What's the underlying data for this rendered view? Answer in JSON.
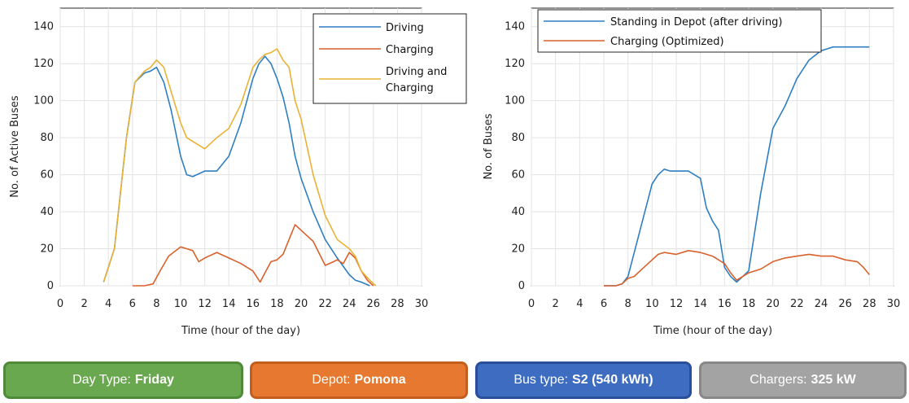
{
  "chart_data": [
    {
      "type": "line",
      "xlabel": "Time (hour of the day)",
      "ylabel": "No. of Active Buses",
      "xlim": [
        0,
        30
      ],
      "ylim": [
        0,
        150
      ],
      "xticks": [
        0,
        2,
        4,
        6,
        8,
        10,
        12,
        14,
        16,
        18,
        20,
        22,
        24,
        26,
        28,
        30
      ],
      "yticks": [
        0,
        20,
        40,
        60,
        80,
        100,
        120,
        140
      ],
      "grid": true,
      "legend_position": "top-right",
      "series": [
        {
          "name": "Driving",
          "color": "#2e7fc2",
          "x": [
            3.6,
            4.5,
            5.5,
            6.2,
            7,
            7.5,
            8,
            8.6,
            9.2,
            10,
            10.5,
            11,
            12,
            13,
            14,
            15,
            16,
            16.5,
            17,
            17.5,
            18,
            18.5,
            19,
            19.5,
            20,
            21,
            22,
            23,
            24,
            24.5,
            25,
            25.7
          ],
          "y": [
            2,
            20,
            80,
            110,
            115,
            116,
            118,
            110,
            95,
            70,
            60,
            59,
            62,
            62,
            70,
            88,
            112,
            120,
            124,
            120,
            112,
            102,
            88,
            70,
            58,
            40,
            25,
            15,
            6,
            3,
            2,
            0
          ]
        },
        {
          "name": "Charging",
          "color": "#d9612c",
          "x": [
            6,
            7,
            7.7,
            8.3,
            9,
            10,
            10.5,
            11,
            11.5,
            12,
            13,
            14,
            15,
            16,
            16.6,
            17,
            17.5,
            18,
            18.5,
            19,
            19.5,
            20,
            21,
            22,
            22.7,
            23,
            23.5,
            24,
            24.5,
            25,
            25.5,
            26
          ],
          "y": [
            0,
            0,
            1,
            8,
            16,
            21,
            20,
            19,
            13,
            15,
            18,
            15,
            12,
            8,
            2,
            7,
            13,
            14,
            17,
            25,
            33,
            30,
            24,
            11,
            13,
            14,
            12,
            18,
            15,
            8,
            3,
            0
          ]
        },
        {
          "name": "Driving and Charging",
          "color": "#eab234",
          "x": [
            3.6,
            4.5,
            5.5,
            6.2,
            7,
            7.5,
            8,
            8.6,
            9.2,
            10,
            10.5,
            11,
            12,
            13,
            14,
            15,
            16,
            16.5,
            17,
            17.5,
            18,
            18.5,
            19,
            19.5,
            20,
            21,
            22,
            23,
            24,
            24.5,
            25,
            25.7,
            26.2
          ],
          "y": [
            2,
            20,
            80,
            110,
            116,
            118,
            122,
            118,
            105,
            88,
            80,
            78,
            74,
            80,
            85,
            98,
            118,
            122,
            125,
            126,
            128,
            122,
            118,
            100,
            90,
            60,
            38,
            25,
            20,
            16,
            8,
            3,
            0
          ]
        }
      ]
    },
    {
      "type": "line",
      "xlabel": "Time (hour of the day)",
      "ylabel": "No. of Buses",
      "xlim": [
        0,
        30
      ],
      "ylim": [
        0,
        150
      ],
      "xticks": [
        0,
        2,
        4,
        6,
        8,
        10,
        12,
        14,
        16,
        18,
        20,
        22,
        24,
        26,
        28,
        30
      ],
      "yticks": [
        0,
        20,
        40,
        60,
        80,
        100,
        120,
        140
      ],
      "grid": true,
      "legend_position": "top-left",
      "series": [
        {
          "name": "Standing in Depot (after driving)",
          "color": "#2e7fc2",
          "x": [
            6,
            7,
            7.5,
            8,
            9,
            10,
            10.5,
            11,
            11.5,
            12,
            13,
            14,
            14.5,
            15,
            15.5,
            16,
            16.5,
            17,
            18,
            19,
            20,
            21,
            22,
            23,
            24,
            24.5,
            25,
            26,
            27,
            28
          ],
          "y": [
            0,
            0,
            1,
            5,
            30,
            55,
            60,
            63,
            62,
            62,
            62,
            58,
            42,
            35,
            30,
            10,
            5,
            2,
            8,
            50,
            85,
            97,
            112,
            122,
            127,
            128,
            129,
            129,
            129,
            129
          ]
        },
        {
          "name": "Charging (Optimized)",
          "color": "#d9612c",
          "x": [
            6,
            7,
            7.5,
            8,
            8.5,
            9,
            10,
            10.5,
            11,
            12,
            13,
            14,
            15,
            16,
            16.5,
            17,
            18,
            19,
            20,
            21,
            22,
            23,
            24,
            25,
            26,
            27,
            27.5,
            28
          ],
          "y": [
            0,
            0,
            1,
            4,
            5,
            8,
            14,
            17,
            18,
            17,
            19,
            18,
            16,
            12,
            7,
            3,
            7,
            9,
            13,
            15,
            16,
            17,
            16,
            16,
            14,
            13,
            10,
            6
          ]
        }
      ]
    }
  ],
  "buttons": [
    {
      "label": "Day Type:",
      "value": "Friday",
      "color": "#6aa84f",
      "border": "#4f8a38"
    },
    {
      "label": "Depot:",
      "value": "Pomona",
      "color": "#e6782f",
      "border": "#c35e1c"
    },
    {
      "label": "Bus type:",
      "value": "S2 (540 kWh)",
      "color": "#3d6cc0",
      "border": "#284f9a"
    },
    {
      "label": "Chargers:",
      "value": "325 kW",
      "color": "#a3a3a3",
      "border": "#888888"
    }
  ]
}
